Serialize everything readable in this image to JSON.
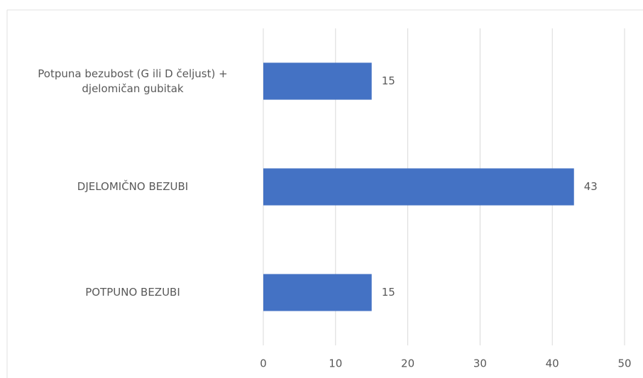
{
  "chart_data": {
    "type": "bar",
    "orientation": "horizontal",
    "categories": [
      "Potpuna bezubost (G ili D čeljust) + djelomičan gubitak",
      "DJELOMIČNO BEZUBI",
      "POTPUNO BEZUBI"
    ],
    "values": [
      15,
      43,
      15
    ],
    "color": "#4472c4",
    "xlim": [
      0,
      50
    ],
    "xticks": [
      0,
      10,
      20,
      30,
      40,
      50
    ],
    "grid": true
  }
}
